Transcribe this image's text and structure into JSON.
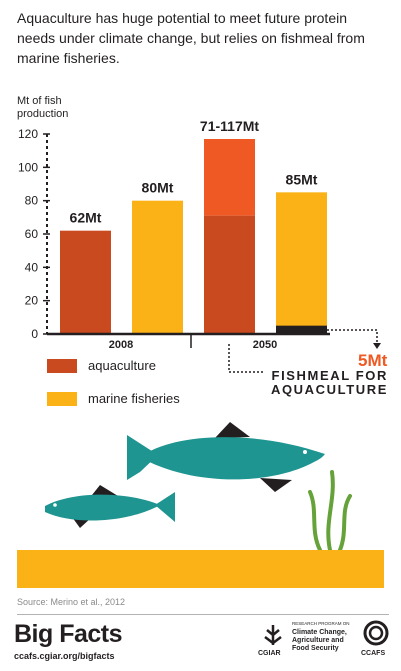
{
  "intro_text": "Aquaculture has huge potential to meet future protein needs under climate change, but relies on fishmeal from marine fisheries.",
  "y_axis_title": "Mt of fish production",
  "colors": {
    "aquaculture": "#c84a1e",
    "aquaculture_upper": "#ef5a24",
    "marine_fisheries": "#fbb217",
    "fishmeal": "#231f20",
    "fish": "#1f9591",
    "seaweed": "#66a23a",
    "ground": "#fbb217"
  },
  "chart_data": {
    "type": "bar",
    "ylim": [
      0,
      120
    ],
    "yticks": [
      "0",
      "20",
      "40",
      "60",
      "80",
      "100",
      "120"
    ],
    "groups": [
      "2008",
      "2050"
    ],
    "bars": [
      {
        "group": "2008",
        "series": "aquaculture",
        "value": 62,
        "label": "62Mt"
      },
      {
        "group": "2008",
        "series": "marine fisheries",
        "value": 80,
        "label": "80Mt"
      },
      {
        "group": "2050",
        "series": "aquaculture",
        "value_low": 71,
        "value_high": 117,
        "label": "71-117Mt"
      },
      {
        "group": "2050",
        "series": "marine fisheries",
        "value": 85,
        "fishmeal_for_aquaculture": 5,
        "label": "85Mt"
      }
    ],
    "legend": [
      "aquaculture",
      "marine fisheries"
    ]
  },
  "fishmeal_value": "5Mt",
  "fishmeal_label": "FISHMEAL FOR AQUACULTURE",
  "source": "Source: Merino et al., 2012",
  "brand": "Big Facts",
  "site": "ccafs.cgiar.org/bigfacts",
  "cgiar": "CGIAR",
  "program_small": "RESEARCH PROGRAM ON",
  "program_name": "Climate Change, Agriculture and Food Security",
  "ccafs": "CCAFS"
}
